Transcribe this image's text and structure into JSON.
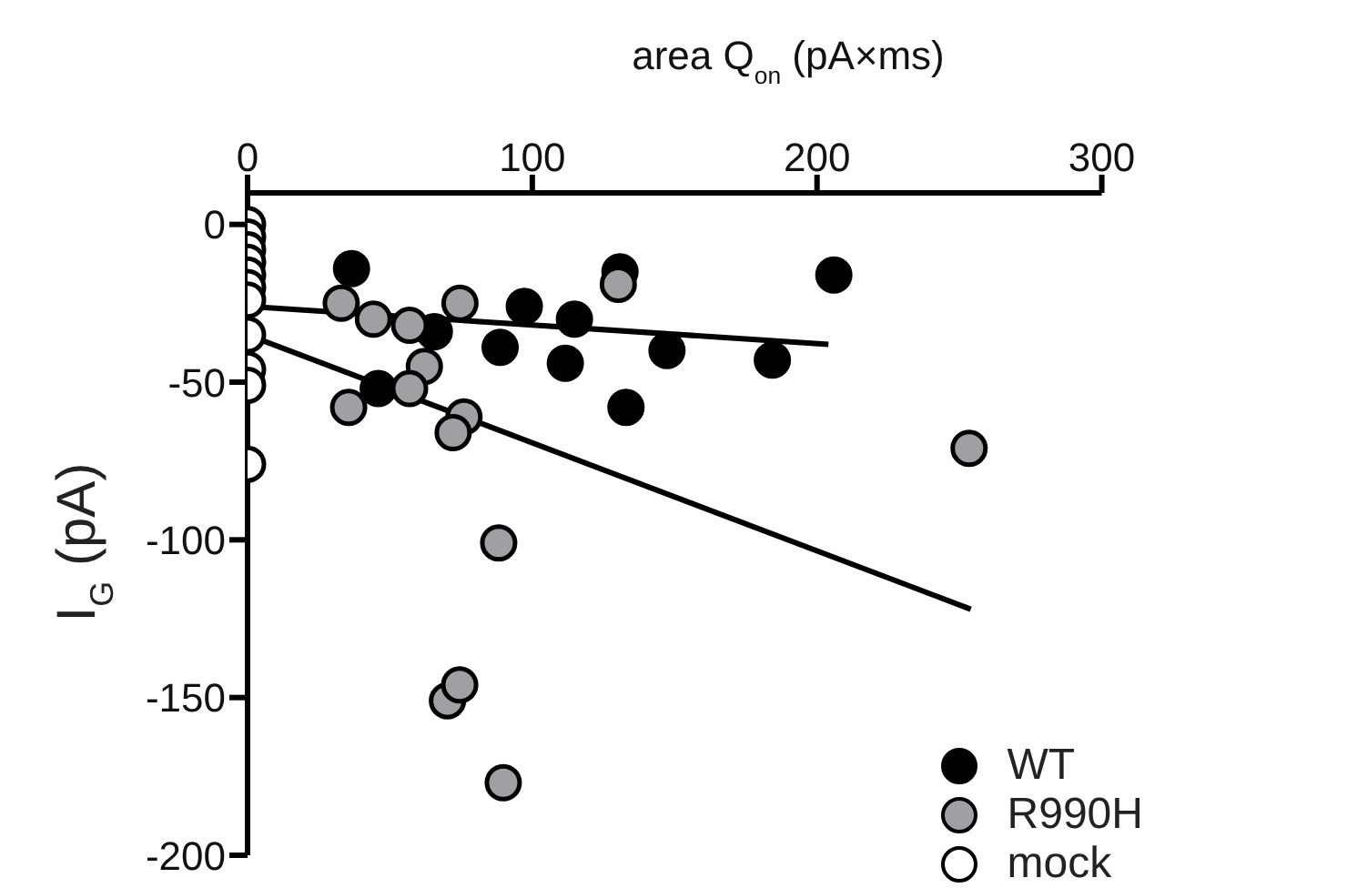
{
  "chart_data": {
    "type": "scatter",
    "xlabel": "area Q$_{on}$ (pA×ms)",
    "ylabel": "I$_{G}$ (pA)",
    "xlim": [
      0,
      300
    ],
    "xticks": [
      0,
      100,
      200,
      300
    ],
    "ylim": [
      -200,
      10
    ],
    "yticks": [
      0,
      -50,
      -100,
      -150,
      -200
    ],
    "legend": "bottom right",
    "marker": "circle",
    "series": [
      {
        "name": "WT",
        "color": "#000000",
        "x": [
          36.5,
          65.6,
          45.9,
          88.7,
          97.2,
          111.6,
          114.8,
          130.8,
          132.9,
          147.3,
          184.3,
          205.9
        ],
        "values": [
          -14,
          -34,
          -52,
          -39,
          -26,
          -44,
          -30,
          -15,
          -58,
          -40,
          -43,
          -16
        ]
      },
      {
        "name": "R990H",
        "color": "#a0a0a4",
        "x": [
          32.9,
          35.5,
          44.2,
          56.9,
          62.1,
          56.9,
          74.6,
          76,
          72.2,
          130.2,
          88.2,
          253.4,
          70.2,
          74.5,
          89.8
        ],
        "values": [
          -25,
          -58,
          -30,
          -32,
          -45,
          -52,
          -25,
          -61,
          -66,
          -19,
          -101,
          -71,
          -151,
          -146,
          -177
        ]
      },
      {
        "name": "mock",
        "color": "#ffffff",
        "x": [
          0,
          0,
          0,
          0,
          0,
          0,
          0,
          0,
          0,
          0,
          0
        ],
        "values": [
          0,
          -4,
          -8,
          -12,
          -16,
          -20,
          -24,
          -35,
          -46,
          -51,
          -76
        ]
      },
      {
        "type": "line",
        "marker": "none",
        "color": "#000000",
        "x": [
          0,
          204
        ],
        "values": [
          -26,
          -38
        ]
      },
      {
        "type": "line",
        "marker": "none",
        "color": "#000000",
        "x": [
          0,
          254
        ],
        "values": [
          -35,
          -122
        ]
      }
    ]
  }
}
